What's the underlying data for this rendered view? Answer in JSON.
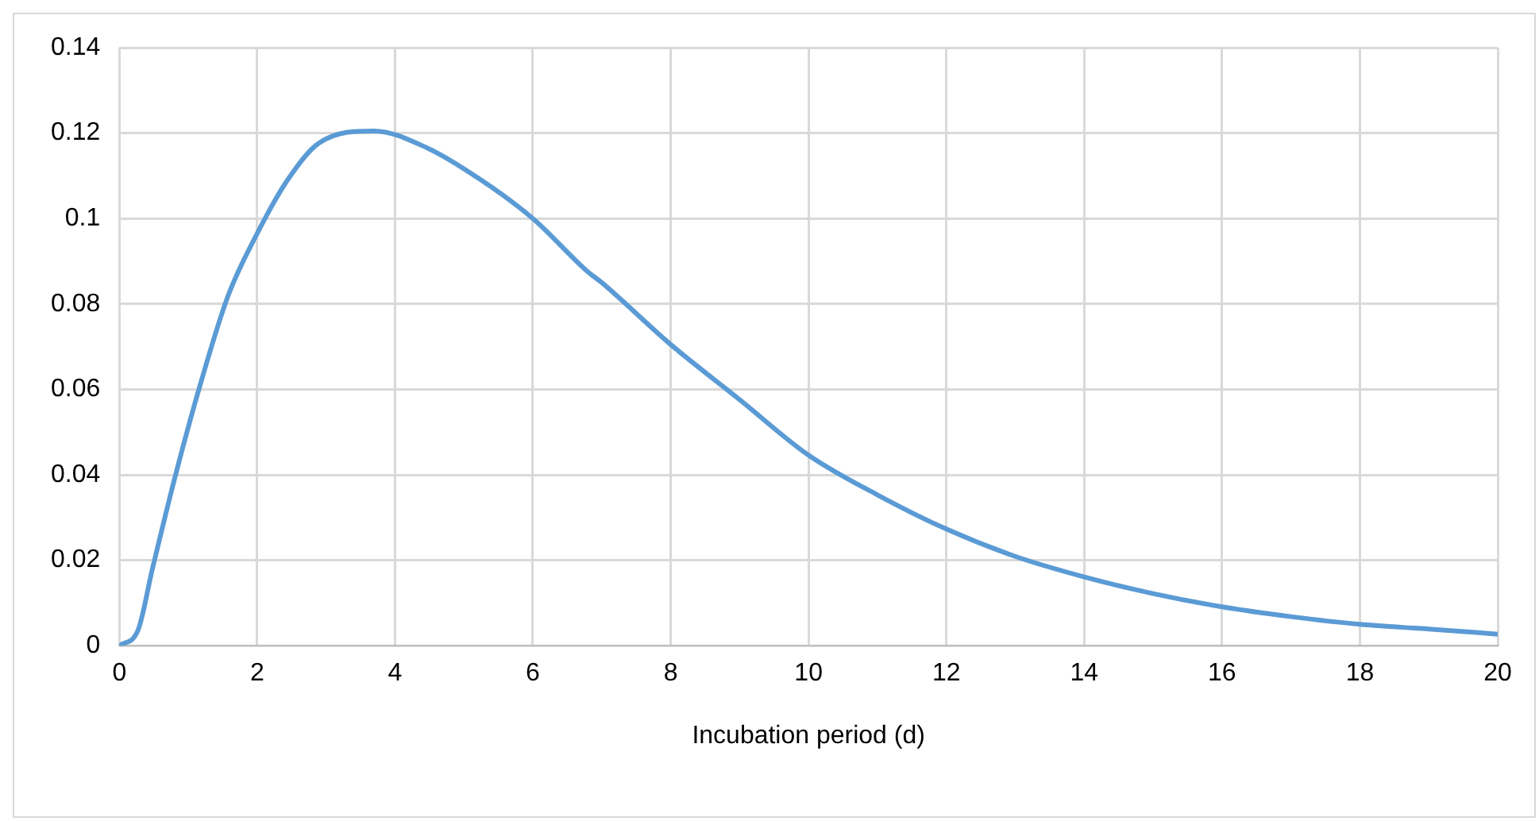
{
  "chart_data": {
    "type": "line",
    "xlabel": "Incubation period (d)",
    "x": [
      0,
      0.27,
      0.48,
      0.8,
      1.19,
      1.58,
      2,
      2.44,
      2.9,
      3.69,
      4.47,
      5.25,
      6,
      6.8,
      7,
      8,
      9,
      10,
      11,
      12,
      13,
      14,
      15,
      16,
      17,
      18,
      19,
      20
    ],
    "series": [
      {
        "color": "#5b9bd5",
        "values": [
          0,
          0.0036,
          0.018,
          0.039,
          0.062,
          0.082,
          0.0965,
          0.109,
          0.1177,
          0.1205,
          0.1165,
          0.109,
          0.1,
          0.0875,
          0.085,
          0.0705,
          0.0576,
          0.0446,
          0.0353,
          0.0273,
          0.0209,
          0.0161,
          0.0122,
          0.0091,
          0.0068,
          0.005,
          0.0039,
          0.0027
        ]
      }
    ],
    "xlim": [
      0,
      20
    ],
    "xticks": [
      0,
      2,
      4,
      6,
      8,
      10,
      12,
      14,
      16,
      18,
      20
    ],
    "ylim": [
      0,
      0.14
    ],
    "yticks": [
      0,
      0.02,
      0.04,
      0.06,
      0.08,
      0.1,
      0.12,
      0.14
    ],
    "grid": true,
    "legend": false,
    "marker": "none",
    "line_style": "solid"
  }
}
